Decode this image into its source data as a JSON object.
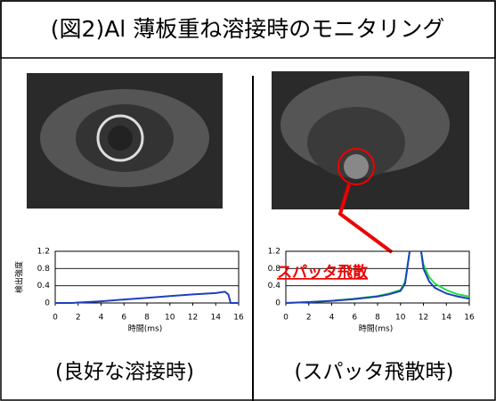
{
  "title": "(図2)Al 薄板重ね溶接時のモニタリング",
  "chart_data": [
    {
      "type": "line",
      "caption": "(良好な溶接時)",
      "xlabel": "時間(ms)",
      "ylabel": "検出強度",
      "xlim": [
        0,
        16
      ],
      "xticks": [
        0,
        2,
        4,
        6,
        8,
        10,
        12,
        14,
        16
      ],
      "ylim": [
        0,
        1.2
      ],
      "yticks": [
        0,
        0.4,
        0.8,
        1.2
      ],
      "grid": true,
      "x": [
        0,
        1.5,
        2,
        4,
        6,
        8,
        10,
        12,
        14,
        14.8,
        15.1,
        15.3,
        16
      ],
      "series": [
        {
          "color": "#1f3fbf",
          "values": [
            0,
            0,
            0.01,
            0.04,
            0.08,
            0.12,
            0.16,
            0.2,
            0.23,
            0.26,
            0.2,
            0,
            0
          ]
        }
      ]
    },
    {
      "type": "line",
      "caption": "(スパッタ飛散時)",
      "xlabel": "時間(ms)",
      "annotation": "スパッタ飛散",
      "xlim": [
        0,
        16
      ],
      "xticks": [
        0,
        2,
        4,
        6,
        8,
        10,
        12,
        14,
        16
      ],
      "ylim": [
        0,
        1.2
      ],
      "yticks": [
        0,
        0.4,
        0.8,
        1.2
      ],
      "grid": true,
      "x": [
        0,
        2,
        4,
        6,
        8,
        9,
        10,
        10.4,
        10.8,
        11.3,
        11.8,
        12,
        12.5,
        13,
        14,
        15,
        16
      ],
      "series": [
        {
          "color": "#22dd44",
          "values": [
            0,
            0.02,
            0.05,
            0.1,
            0.16,
            0.22,
            0.3,
            0.5,
            1.2,
            null,
            1.2,
            0.9,
            0.6,
            0.45,
            0.3,
            0.2,
            0.15
          ]
        },
        {
          "color": "#1f3fbf",
          "values": [
            0,
            0.02,
            0.05,
            0.09,
            0.15,
            0.2,
            0.28,
            0.45,
            1.2,
            null,
            1.2,
            0.8,
            0.5,
            0.35,
            0.22,
            0.15,
            0.1
          ]
        }
      ]
    }
  ]
}
